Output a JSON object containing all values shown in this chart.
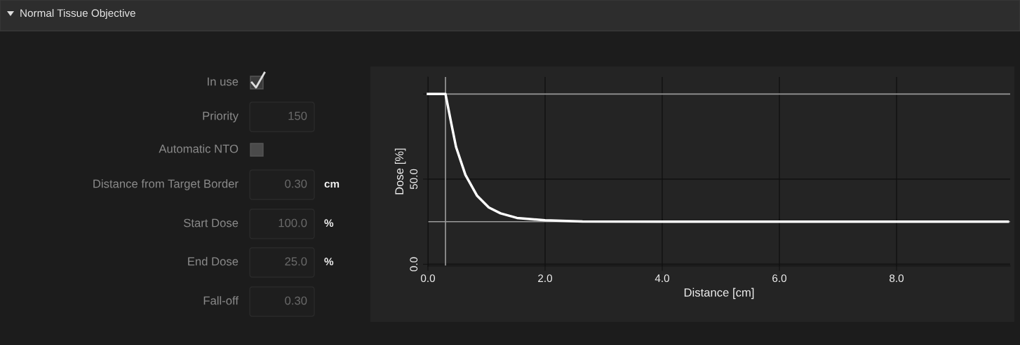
{
  "chart_data": [
    {
      "type": "other",
      "title": "Normal Tissue Objective",
      "annotations": [
        "In use",
        "Priority",
        "150",
        "Automatic NTO",
        "Distance from Target Border",
        "0.30",
        "cm",
        "Start Dose",
        "100.0",
        "%",
        "End Dose",
        "25.0",
        "%",
        "Fall-off",
        "0.30"
      ]
    },
    {
      "type": "line",
      "xlabel": "Distance [cm]",
      "ylabel": "Dose [%]",
      "series": [
        {
          "color": "#ffffff",
          "x": [
            0.0,
            0.3,
            0.4,
            0.48,
            0.64,
            0.84,
            1.04,
            1.24,
            1.52,
            2.0,
            2.64,
            4.0,
            6.0,
            8.0,
            9.9
          ],
          "values": [
            100,
            100,
            82.5,
            68.9,
            52.5,
            40.2,
            33.3,
            29.9,
            27.2,
            25.8,
            25.1,
            25,
            25,
            25,
            25
          ]
        }
      ],
      "ref_lines": [
        {
          "axis": "y",
          "value": 100,
          "color": "#9a9a9a"
        },
        {
          "axis": "y",
          "value": 25,
          "color": "#9a9a9a"
        },
        {
          "axis": "x",
          "value": 0.3,
          "color": "#9a9a9a"
        }
      ],
      "xlim": [
        0,
        9.94
      ],
      "ylim": [
        -1,
        110
      ],
      "xticks": [
        {
          "value": 0,
          "label": "0.0"
        },
        {
          "value": 2,
          "label": "2.0"
        },
        {
          "value": 4,
          "label": "4.0"
        },
        {
          "value": 6,
          "label": "6.0"
        },
        {
          "value": 8,
          "label": "8.0"
        }
      ],
      "yticks": [
        {
          "value": 0,
          "label": "0.0"
        },
        {
          "value": 50,
          "label": "50.0"
        },
        {
          "value": 100,
          "label": null
        }
      ],
      "grid": true,
      "marker": "none",
      "line_style": "solid"
    }
  ]
}
